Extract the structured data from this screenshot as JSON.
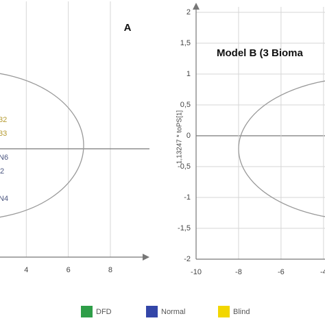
{
  "chart_data": [
    {
      "type": "scatter",
      "annotation": "A",
      "xlim": [
        2.75,
        9.6
      ],
      "xticks": [
        4,
        6,
        8
      ],
      "point_labels": [
        {
          "text": "32",
          "color": "#b59a2e"
        },
        {
          "text": "33",
          "color": "#b59a2e"
        },
        {
          "text": "N6",
          "color": "#4b5680"
        },
        {
          "text": "2",
          "color": "#4b5680"
        },
        {
          "text": "N4",
          "color": "#4b5680"
        }
      ]
    },
    {
      "type": "scatter",
      "title": "Model B (3 Bioma",
      "y_label": "1,13247 * toPS[1]",
      "xlim": [
        -10,
        -3.93
      ],
      "xticks": [
        -10,
        -8,
        -6,
        -4
      ],
      "ylim": [
        -2,
        2
      ],
      "yticks": [
        -2,
        {
          "value": -1.5,
          "label": "-1,5"
        },
        -1,
        {
          "value": -0.5,
          "label": "-0,5"
        },
        0,
        {
          "value": 0.5,
          "label": "0,5"
        },
        1,
        {
          "value": 1.5,
          "label": "1,5"
        },
        2
      ]
    }
  ],
  "legend": [
    {
      "name": "DFD",
      "color": "#2e9e48"
    },
    {
      "name": "Normal",
      "color": "#3346a8"
    },
    {
      "name": "Blind",
      "color": "#f2d600"
    }
  ]
}
